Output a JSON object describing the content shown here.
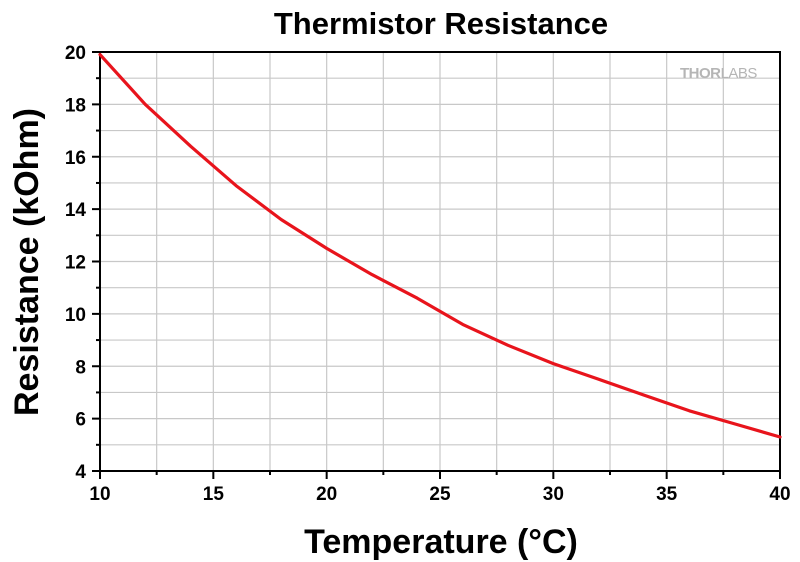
{
  "chart_data": {
    "type": "line",
    "title": "Thermistor Resistance",
    "xlabel": "Temperature (°C)",
    "ylabel": "Resistance (kOhm)",
    "xlim": [
      10,
      40
    ],
    "ylim": [
      4,
      20
    ],
    "xticks": [
      10,
      15,
      20,
      25,
      30,
      35,
      40
    ],
    "yticks": [
      4,
      6,
      8,
      10,
      12,
      14,
      16,
      18,
      20
    ],
    "grid": true,
    "legend": "none",
    "series": [
      {
        "color": "#e8141c",
        "x": [
          10,
          12,
          14,
          16,
          18,
          20,
          22,
          24,
          26,
          28,
          30,
          32,
          34,
          36,
          38,
          40
        ],
        "y": [
          19.9,
          18.0,
          16.4,
          14.9,
          13.6,
          12.5,
          11.5,
          10.6,
          9.6,
          8.8,
          8.1,
          7.5,
          6.9,
          6.3,
          5.8,
          5.3
        ]
      }
    ]
  },
  "logo": {
    "text_bold": "THOR",
    "text_light": "LABS"
  }
}
